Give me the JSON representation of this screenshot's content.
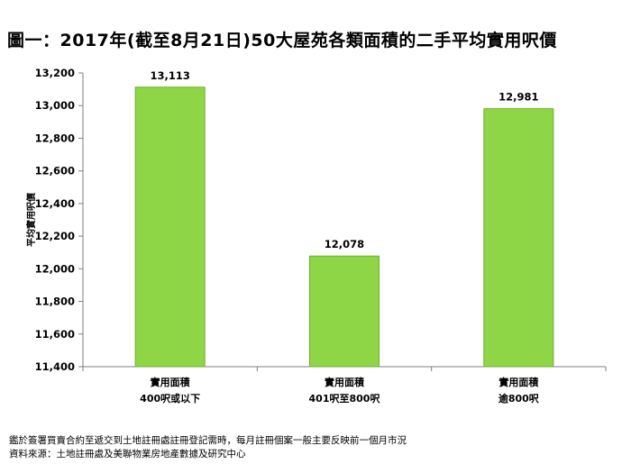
{
  "title": "圖一：2017年(截至8月21日)50大屋苑各類面積的二手平均實用呎價",
  "notes": [
    "鑑於簽署買賣合約至遞交到土地註冊處註冊登記需時，每月註冊個案一般主要反映前一個月市況",
    "資料來源：土地註冊處及美聯物業房地產數據及研究中心"
  ],
  "colors": {
    "bar": "#8fd646",
    "bar_edge": "#6fae2a"
  },
  "chart_data": {
    "type": "bar",
    "ylabel": "平均實用呎價",
    "xlabel": "",
    "ylim": [
      11400,
      13200
    ],
    "yticks": [
      "11,400",
      "11,600",
      "11,800",
      "12,000",
      "12,200",
      "12,400",
      "12,600",
      "12,800",
      "13,000",
      "13,200"
    ],
    "categories": [
      {
        "line1": "實用面積",
        "line2": "400呎或以下"
      },
      {
        "line1": "實用面積",
        "line2": "401呎至800呎"
      },
      {
        "line1": "實用面積",
        "line2": "逾800呎"
      }
    ],
    "values": [
      13113,
      12078,
      12981
    ],
    "value_labels": [
      "13,113",
      "12,078",
      "12,981"
    ],
    "grid": false
  }
}
